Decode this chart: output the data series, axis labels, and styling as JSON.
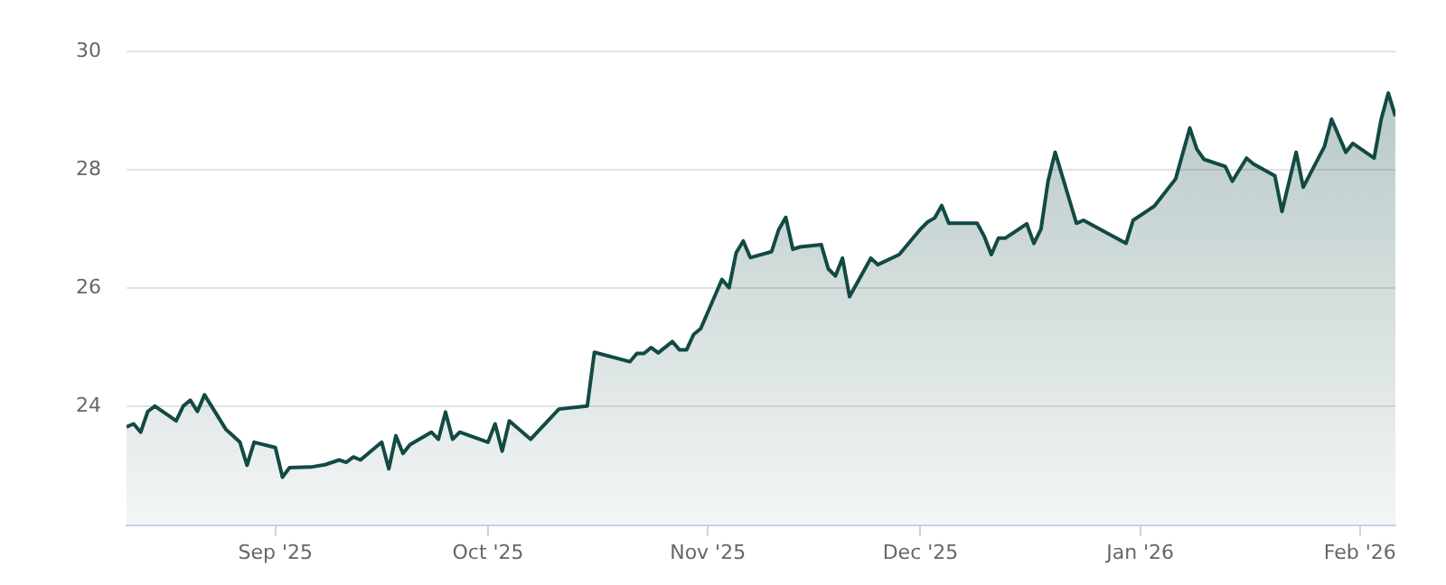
{
  "chart_data": {
    "type": "area",
    "x": [
      "2025-08-11",
      "2025-08-12",
      "2025-08-13",
      "2025-08-14",
      "2025-08-15",
      "2025-08-18",
      "2025-08-19",
      "2025-08-20",
      "2025-08-21",
      "2025-08-22",
      "2025-08-25",
      "2025-08-27",
      "2025-08-28",
      "2025-08-29",
      "2025-09-01",
      "2025-09-02",
      "2025-09-03",
      "2025-09-06",
      "2025-09-08",
      "2025-09-10",
      "2025-09-11",
      "2025-09-12",
      "2025-09-13",
      "2025-09-16",
      "2025-09-17",
      "2025-09-18",
      "2025-09-19",
      "2025-09-20",
      "2025-09-23",
      "2025-09-24",
      "2025-09-25",
      "2025-09-26",
      "2025-09-27",
      "2025-10-01",
      "2025-10-02",
      "2025-10-03",
      "2025-10-04",
      "2025-10-07",
      "2025-10-11",
      "2025-10-15",
      "2025-10-16",
      "2025-10-21",
      "2025-10-22",
      "2025-10-23",
      "2025-10-24",
      "2025-10-25",
      "2025-10-27",
      "2025-10-28",
      "2025-10-29",
      "2025-10-30",
      "2025-10-31",
      "2025-11-03",
      "2025-11-04",
      "2025-11-05",
      "2025-11-06",
      "2025-11-07",
      "2025-11-10",
      "2025-11-11",
      "2025-11-12",
      "2025-11-13",
      "2025-11-14",
      "2025-11-17",
      "2025-11-18",
      "2025-11-19",
      "2025-11-20",
      "2025-11-21",
      "2025-11-24",
      "2025-11-25",
      "2025-11-28",
      "2025-12-01",
      "2025-12-02",
      "2025-12-03",
      "2025-12-04",
      "2025-12-05",
      "2025-12-09",
      "2025-12-10",
      "2025-12-11",
      "2025-12-12",
      "2025-12-13",
      "2025-12-16",
      "2025-12-17",
      "2025-12-18",
      "2025-12-19",
      "2025-12-20",
      "2025-12-23",
      "2025-12-24",
      "2025-12-30",
      "2025-12-31",
      "2026-01-03",
      "2026-01-06",
      "2026-01-08",
      "2026-01-09",
      "2026-01-10",
      "2026-01-13",
      "2026-01-14",
      "2026-01-16",
      "2026-01-17",
      "2026-01-20",
      "2026-01-21",
      "2026-01-23",
      "2026-01-24",
      "2026-01-27",
      "2026-01-28",
      "2026-01-30",
      "2026-01-31",
      "2026-02-03",
      "2026-02-04",
      "2026-02-05",
      "2026-02-06"
    ],
    "values": [
      23.66,
      23.71,
      23.57,
      23.92,
      24.01,
      23.76,
      24.01,
      24.11,
      23.92,
      24.2,
      23.62,
      23.4,
      23.01,
      23.4,
      23.31,
      22.81,
      22.97,
      22.98,
      23.02,
      23.1,
      23.06,
      23.15,
      23.1,
      23.4,
      22.95,
      23.51,
      23.21,
      23.36,
      23.57,
      23.45,
      23.91,
      23.45,
      23.57,
      23.4,
      23.71,
      23.25,
      23.76,
      23.45,
      23.96,
      24.01,
      24.92,
      24.76,
      24.9,
      24.9,
      25.0,
      24.91,
      25.1,
      24.96,
      24.96,
      25.22,
      25.32,
      26.15,
      26.01,
      26.6,
      26.8,
      26.52,
      26.62,
      26.99,
      27.2,
      26.66,
      26.7,
      26.74,
      26.33,
      26.21,
      26.51,
      25.86,
      26.51,
      26.4,
      26.57,
      27.0,
      27.12,
      27.19,
      27.4,
      27.1,
      27.1,
      26.88,
      26.57,
      26.85,
      26.85,
      27.09,
      26.76,
      27.0,
      27.81,
      28.3,
      27.1,
      27.15,
      26.76,
      27.15,
      27.39,
      27.85,
      28.71,
      28.35,
      28.18,
      28.06,
      27.81,
      28.2,
      28.1,
      27.9,
      27.3,
      28.3,
      27.71,
      28.4,
      28.86,
      28.3,
      28.45,
      28.2,
      28.86,
      29.3,
      28.91
    ],
    "color": "#124a45",
    "xlim": [
      "2025-08-11",
      "2026-02-06"
    ],
    "xticks": [
      {
        "value": "2025-09-01",
        "label": "Sep '25"
      },
      {
        "value": "2025-10-01",
        "label": "Oct '25"
      },
      {
        "value": "2025-11-01",
        "label": "Nov '25"
      },
      {
        "value": "2025-12-01",
        "label": "Dec '25"
      },
      {
        "value": "2026-01-01",
        "label": "Jan '26"
      },
      {
        "value": "2026-02-01",
        "label": "Feb '26"
      }
    ],
    "ylim": [
      22,
      30
    ],
    "yticks": [
      {
        "value": 22,
        "label": null
      },
      24,
      26,
      28,
      30
    ],
    "grid": "y",
    "legend": false,
    "marker": "none",
    "line_style": "solid"
  }
}
